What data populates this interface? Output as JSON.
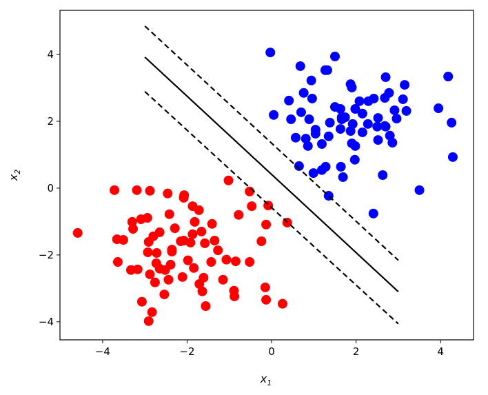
{
  "chart_data": {
    "type": "scatter",
    "title": "",
    "xlabel": "x",
    "xlabel_sub": "1",
    "ylabel": "x",
    "ylabel_sub": "2",
    "xlim": [
      -5.01,
      4.78
    ],
    "ylim": [
      -4.54,
      5.32
    ],
    "xticks": [
      -4,
      -2,
      0,
      2,
      4
    ],
    "yticks": [
      -4,
      -2,
      0,
      2,
      4
    ],
    "xtick_labels": [
      "−4",
      "−2",
      "0",
      "2",
      "4"
    ],
    "ytick_labels": [
      "−4",
      "−2",
      "0",
      "2",
      "4"
    ],
    "grid": false,
    "legend": "none",
    "series": [
      {
        "color": "#ff0000",
        "points": [
          [
            -4.59,
            -1.34
          ],
          [
            -3.72,
            -0.06
          ],
          [
            -3.19,
            -0.06
          ],
          [
            -2.88,
            -0.08
          ],
          [
            -2.46,
            -0.16
          ],
          [
            -2.08,
            -0.29
          ],
          [
            -2.07,
            -0.21
          ],
          [
            -2.42,
            -0.78
          ],
          [
            -3.3,
            -1.01
          ],
          [
            -3.09,
            -0.93
          ],
          [
            -2.94,
            -0.89
          ],
          [
            -3.28,
            -1.22
          ],
          [
            -2.29,
            -1.2
          ],
          [
            -3.66,
            -1.53
          ],
          [
            -3.51,
            -1.55
          ],
          [
            -2.65,
            -1.32
          ],
          [
            -2.8,
            -1.44
          ],
          [
            -2.91,
            -1.61
          ],
          [
            -2.15,
            -1.59
          ],
          [
            -2.36,
            -1.84
          ],
          [
            -2.93,
            -1.92
          ],
          [
            -2.72,
            -1.94
          ],
          [
            -1.02,
            0.23
          ],
          [
            -0.52,
            -0.1
          ],
          [
            -0.47,
            -0.54
          ],
          [
            -0.08,
            -0.52
          ],
          [
            -0.78,
            -0.8
          ],
          [
            0.37,
            -1.03
          ],
          [
            -0.13,
            -1.09
          ],
          [
            -0.24,
            -1.59
          ],
          [
            -1.87,
            -0.54
          ],
          [
            -1.72,
            -0.66
          ],
          [
            -1.82,
            -1.01
          ],
          [
            -1.41,
            -1.07
          ],
          [
            -1.66,
            -1.3
          ],
          [
            -1.87,
            -1.38
          ],
          [
            -2.08,
            -1.57
          ],
          [
            -1.92,
            -1.63
          ],
          [
            -1.58,
            -1.65
          ],
          [
            -1.35,
            -1.57
          ],
          [
            -1.27,
            -1.86
          ],
          [
            -2.36,
            -1.9
          ],
          [
            -3.64,
            -2.21
          ],
          [
            -3.33,
            -2.45
          ],
          [
            -3.17,
            -2.43
          ],
          [
            -2.73,
            -2.25
          ],
          [
            -2.65,
            -2.41
          ],
          [
            -2.52,
            -2.45
          ],
          [
            -2.39,
            -2.29
          ],
          [
            -1.98,
            -2.16
          ],
          [
            -1.84,
            -2.39
          ],
          [
            -1.43,
            -2.21
          ],
          [
            -1.07,
            -2.14
          ],
          [
            -0.85,
            -2.19
          ],
          [
            -0.52,
            -2.21
          ],
          [
            -2.88,
            -2.58
          ],
          [
            -2.76,
            -2.82
          ],
          [
            -2.44,
            -2.74
          ],
          [
            -2.11,
            -2.66
          ],
          [
            -1.71,
            -2.87
          ],
          [
            -1.61,
            -2.68
          ],
          [
            -1.64,
            -3.09
          ],
          [
            -1.15,
            -2.74
          ],
          [
            -0.89,
            -3.07
          ],
          [
            -0.88,
            -3.24
          ],
          [
            -0.15,
            -2.97
          ],
          [
            -0.13,
            -3.34
          ],
          [
            0.26,
            -3.46
          ],
          [
            -2.54,
            -3.18
          ],
          [
            -3.07,
            -3.4
          ],
          [
            -1.56,
            -3.53
          ],
          [
            -2.83,
            -3.71
          ],
          [
            -2.91,
            -3.98
          ]
        ]
      },
      {
        "color": "#0000ff",
        "points": [
          [
            -0.03,
            4.06
          ],
          [
            1.5,
            3.94
          ],
          [
            0.68,
            3.65
          ],
          [
            1.27,
            3.53
          ],
          [
            1.32,
            3.53
          ],
          [
            0.94,
            3.22
          ],
          [
            1.87,
            3.11
          ],
          [
            1.9,
            3.01
          ],
          [
            0.76,
            2.85
          ],
          [
            0.96,
            2.68
          ],
          [
            0.41,
            2.62
          ],
          [
            0.05,
            2.19
          ],
          [
            0.46,
            2.06
          ],
          [
            0.7,
            2.27
          ],
          [
            0.89,
            2.06
          ],
          [
            1.5,
            2.43
          ],
          [
            1.63,
            2.37
          ],
          [
            2.08,
            2.6
          ],
          [
            2.29,
            2.6
          ],
          [
            2.42,
            2.68
          ],
          [
            1.98,
            2.37
          ],
          [
            2.15,
            2.23
          ],
          [
            1.66,
            2.12
          ],
          [
            1.38,
            1.96
          ],
          [
            1.92,
            1.92
          ],
          [
            2.28,
            1.92
          ],
          [
            1.04,
            1.75
          ],
          [
            2.7,
            3.32
          ],
          [
            3.15,
            3.09
          ],
          [
            4.18,
            3.34
          ],
          [
            2.78,
            2.85
          ],
          [
            2.68,
            2.7
          ],
          [
            3.11,
            2.66
          ],
          [
            2.91,
            2.33
          ],
          [
            2.96,
            2.08
          ],
          [
            3.19,
            2.31
          ],
          [
            3.95,
            2.39
          ],
          [
            4.26,
            1.96
          ],
          [
            2.52,
            2.1
          ],
          [
            2.5,
            1.84
          ],
          [
            2.7,
            1.84
          ],
          [
            1.87,
            1.71
          ],
          [
            2.52,
            1.44
          ],
          [
            2.8,
            1.57
          ],
          [
            2.86,
            1.36
          ],
          [
            1.9,
            1.34
          ],
          [
            1.98,
            1.26
          ],
          [
            1.74,
            2.12
          ],
          [
            1.66,
            2.06
          ],
          [
            2.68,
            1.86
          ],
          [
            0.57,
            1.51
          ],
          [
            0.81,
            1.48
          ],
          [
            0.86,
            1.26
          ],
          [
            1.04,
            1.63
          ],
          [
            1.19,
            1.32
          ],
          [
            1.35,
            1.55
          ],
          [
            1.63,
            1.77
          ],
          [
            2.15,
            1.67
          ],
          [
            0.65,
            0.66
          ],
          [
            0.99,
            0.45
          ],
          [
            1.19,
            0.54
          ],
          [
            1.28,
            0.64
          ],
          [
            1.64,
            0.64
          ],
          [
            1.69,
            0.33
          ],
          [
            1.97,
            0.85
          ],
          [
            2.63,
            0.39
          ],
          [
            3.5,
            -0.06
          ],
          [
            1.35,
            -0.23
          ],
          [
            2.41,
            -0.76
          ],
          [
            4.29,
            0.93
          ]
        ]
      }
    ],
    "lines": [
      {
        "role": "decision-boundary",
        "style": "solid",
        "x": [
          -3,
          3
        ],
        "y": [
          3.92,
          -3.1
        ]
      },
      {
        "role": "margin-upper",
        "style": "dashed",
        "x": [
          -3,
          3
        ],
        "y": [
          4.85,
          -2.16
        ]
      },
      {
        "role": "margin-lower",
        "style": "dashed",
        "x": [
          -3,
          3
        ],
        "y": [
          2.89,
          -4.06
        ]
      }
    ]
  }
}
